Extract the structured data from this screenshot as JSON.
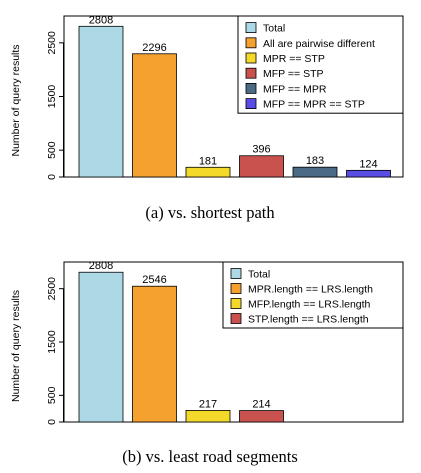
{
  "chart_data": [
    {
      "type": "bar",
      "caption": "(a) vs. shortest path",
      "ylabel": "Number of query results",
      "ylim": [
        0,
        3000
      ],
      "yticks": [
        0,
        500,
        1500,
        2500
      ],
      "grid": false,
      "legend_position": "top-right",
      "categories": [
        "Total",
        "All are pairwise different",
        "MPR == STP",
        "MFP == STP",
        "MFP == MPR",
        "MFP == MPR == STP"
      ],
      "values": [
        2808,
        2296,
        181,
        396,
        183,
        124
      ],
      "value_labels": [
        "2808",
        "2296",
        "181",
        "396",
        "183",
        "124"
      ],
      "colors": [
        "#add8e6",
        "#f4a130",
        "#f2d92a",
        "#c9524f",
        "#4a6a85",
        "#5a4de6"
      ]
    },
    {
      "type": "bar",
      "caption": "(b) vs. least road segments",
      "ylabel": "Number of query results",
      "ylim": [
        0,
        3000
      ],
      "yticks": [
        0,
        500,
        1500,
        2500
      ],
      "grid": false,
      "legend_position": "top-right",
      "categories": [
        "Total",
        "MPR.length == LRS.length",
        "MFP.length == LRS.length",
        "STP.length == LRS.length"
      ],
      "values": [
        2808,
        2546,
        217,
        214
      ],
      "value_labels": [
        "2808",
        "2546",
        "217",
        "214"
      ],
      "colors": [
        "#add8e6",
        "#f4a130",
        "#f2d92a",
        "#c9524f"
      ]
    }
  ]
}
